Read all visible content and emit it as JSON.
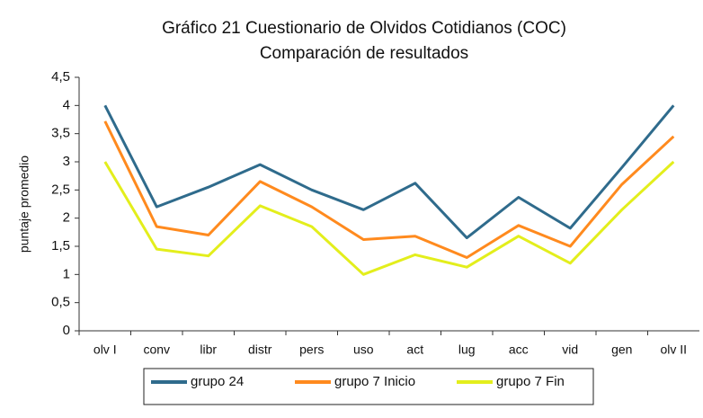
{
  "chart_data": {
    "type": "line",
    "title": "Gráfico 21 Cuestionario de Olvidos Cotidianos (COC)",
    "subtitle": "Comparación de resultados",
    "y_label": "puntaje promedio",
    "categories": [
      "olv I",
      "conv",
      "libr",
      "distr",
      "pers",
      "uso",
      "act",
      "lug",
      "acc",
      "vid",
      "gen",
      "olv II"
    ],
    "series": [
      {
        "name": "grupo 24",
        "color": "#2f6b8c",
        "values": [
          4.0,
          2.2,
          2.55,
          2.95,
          2.5,
          2.15,
          2.62,
          1.65,
          2.37,
          1.82,
          2.9,
          4.0
        ]
      },
      {
        "name": "grupo 7 Inicio",
        "color": "#ff8a1e",
        "values": [
          3.72,
          1.85,
          1.7,
          2.65,
          2.2,
          1.62,
          1.68,
          1.3,
          1.87,
          1.5,
          2.6,
          3.45
        ]
      },
      {
        "name": "grupo 7 Fin",
        "color": "#e3ee1c",
        "values": [
          3.0,
          1.45,
          1.33,
          2.22,
          1.85,
          1.0,
          1.35,
          1.13,
          1.68,
          1.2,
          2.15,
          3.0
        ]
      }
    ],
    "ylim": [
      0,
      4.5
    ],
    "yticks": [
      0,
      {
        "value": 0.5,
        "label": "0,5"
      },
      1,
      {
        "value": 1.5,
        "label": "1,5"
      },
      2,
      {
        "value": 2.5,
        "label": "2,5"
      },
      3,
      {
        "value": 3.5,
        "label": "3,5"
      },
      4,
      {
        "value": 4.5,
        "label": "4,5"
      }
    ],
    "grid": false,
    "legend": "bottom"
  }
}
